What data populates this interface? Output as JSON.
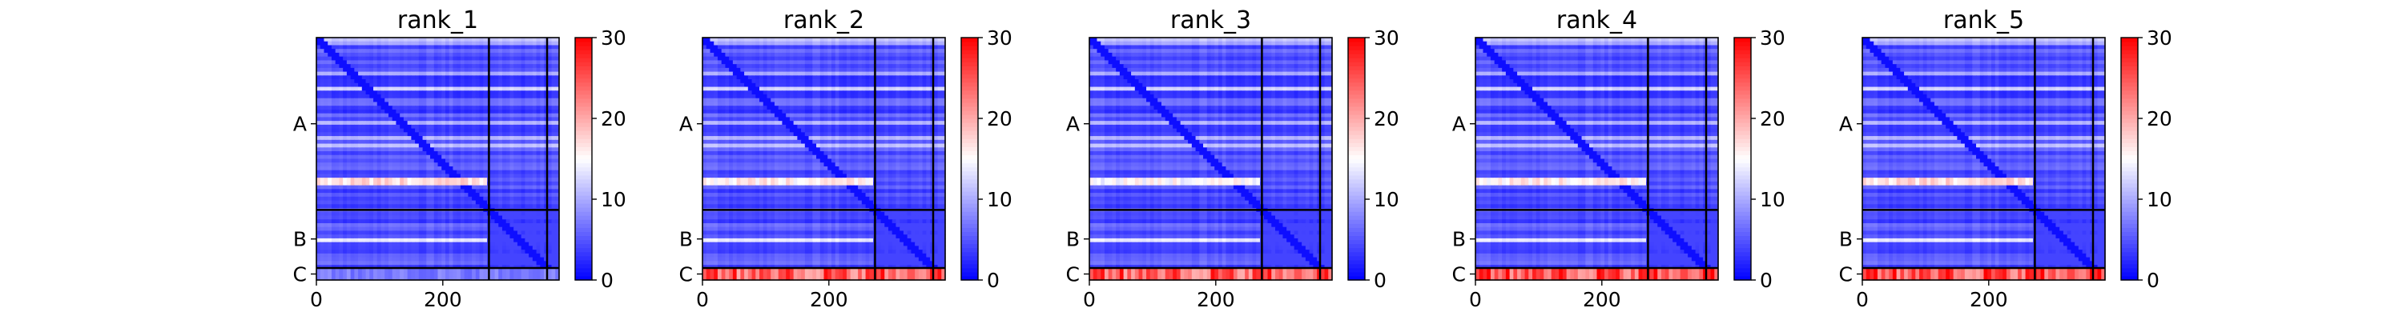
{
  "chart_data": [
    {
      "type": "heatmap",
      "title": "rank_1",
      "xlim": [
        0,
        384
      ],
      "x_ticks": [
        0,
        200
      ],
      "x_tick_labels": [
        "0",
        "200"
      ],
      "chain_labels": [
        "A",
        "B",
        "C"
      ],
      "chain_boundaries": [
        273,
        365
      ],
      "colorbar": {
        "vmin": 0,
        "vmax": 30,
        "ticks": [
          "0",
          "10",
          "20",
          "30"
        ],
        "colormap": [
          "#0000ff",
          "#ffffff",
          "#ff0000"
        ]
      },
      "high_error_band": {
        "rows_start": 220,
        "rows_end": 226,
        "value": 18
      },
      "chain_c_row_value": 8
    },
    {
      "type": "heatmap",
      "title": "rank_2",
      "xlim": [
        0,
        384
      ],
      "x_ticks": [
        0,
        200
      ],
      "x_tick_labels": [
        "0",
        "200"
      ],
      "chain_labels": [
        "A",
        "B",
        "C"
      ],
      "chain_boundaries": [
        273,
        365
      ],
      "colorbar": {
        "vmin": 0,
        "vmax": 30,
        "ticks": [
          "0",
          "10",
          "20",
          "30"
        ],
        "colormap": [
          "#0000ff",
          "#ffffff",
          "#ff0000"
        ]
      },
      "high_error_band": {
        "rows_start": 220,
        "rows_end": 226,
        "value": 17
      },
      "chain_c_row_value": 27
    },
    {
      "type": "heatmap",
      "title": "rank_3",
      "xlim": [
        0,
        384
      ],
      "x_ticks": [
        0,
        200
      ],
      "x_tick_labels": [
        "0",
        "200"
      ],
      "chain_labels": [
        "A",
        "B",
        "C"
      ],
      "chain_boundaries": [
        273,
        365
      ],
      "colorbar": {
        "vmin": 0,
        "vmax": 30,
        "ticks": [
          "0",
          "10",
          "20",
          "30"
        ],
        "colormap": [
          "#0000ff",
          "#ffffff",
          "#ff0000"
        ]
      },
      "high_error_band": {
        "rows_start": 220,
        "rows_end": 226,
        "value": 16
      },
      "chain_c_row_value": 27
    },
    {
      "type": "heatmap",
      "title": "rank_4",
      "xlim": [
        0,
        384
      ],
      "x_ticks": [
        0,
        200
      ],
      "x_tick_labels": [
        "0",
        "200"
      ],
      "chain_labels": [
        "A",
        "B",
        "C"
      ],
      "chain_boundaries": [
        273,
        365
      ],
      "colorbar": {
        "vmin": 0,
        "vmax": 30,
        "ticks": [
          "0",
          "10",
          "20",
          "30"
        ],
        "colormap": [
          "#0000ff",
          "#ffffff",
          "#ff0000"
        ]
      },
      "high_error_band": {
        "rows_start": 220,
        "rows_end": 226,
        "value": 17
      },
      "chain_c_row_value": 28
    },
    {
      "type": "heatmap",
      "title": "rank_5",
      "xlim": [
        0,
        384
      ],
      "x_ticks": [
        0,
        200
      ],
      "x_tick_labels": [
        "0",
        "200"
      ],
      "chain_labels": [
        "A",
        "B",
        "C"
      ],
      "chain_boundaries": [
        273,
        365
      ],
      "colorbar": {
        "vmin": 0,
        "vmax": 30,
        "ticks": [
          "0",
          "10",
          "20",
          "30"
        ],
        "colormap": [
          "#0000ff",
          "#ffffff",
          "#ff0000"
        ]
      },
      "high_error_band": {
        "rows_start": 220,
        "rows_end": 226,
        "value": 18
      },
      "chain_c_row_value": 28
    }
  ]
}
